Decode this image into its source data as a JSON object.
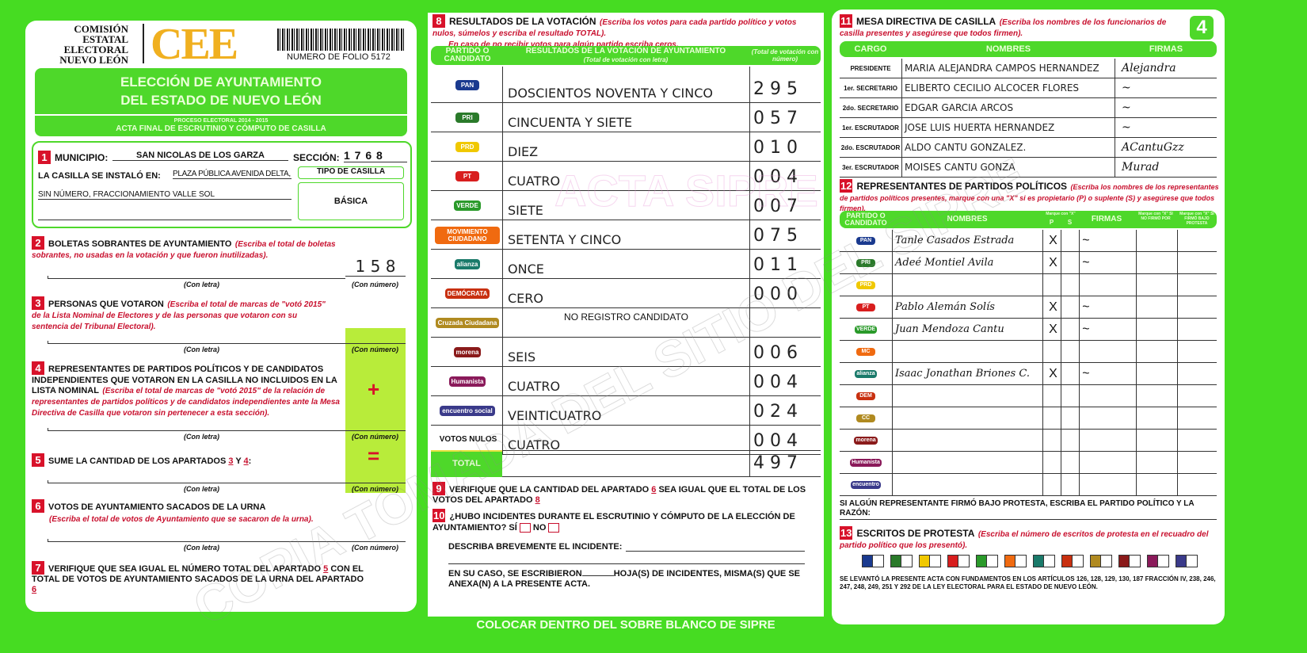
{
  "colors": {
    "background": "#46dc22",
    "accent_red": "#d8122a",
    "logo_yellow": "#f0b020"
  },
  "header": {
    "org_lines": [
      "COMISIÓN",
      "ESTATAL",
      "ELECTORAL",
      "NUEVO LEÓN"
    ],
    "logo": "CEE",
    "folio": "NUMERO DE FOLIO 5172",
    "page_number": "4"
  },
  "title": {
    "line1": "ELECCIÓN DE AYUNTAMIENTO",
    "line2": "DEL ESTADO DE NUEVO LEÓN",
    "process": "PROCESO ELECTORAL 2014 - 2015",
    "act": "ACTA FINAL DE ESCRUTINIO Y CÓMPUTO DE CASILLA"
  },
  "s1": {
    "n": "1",
    "municipio_label": "MUNICIPIO:",
    "municipio": "SAN NICOLAS DE LOS GARZA",
    "seccion_label": "SECCIÓN:",
    "seccion": "1 7 6 8",
    "lugar_label": "LA CASILLA SE INSTALÓ EN:",
    "lugar1": "PLAZA PÚBLICA AVENIDA DELTA,",
    "lugar2": "SIN NÚMERO, FRACCIONAMIENTO VALLE SOL",
    "tipo_label": "TIPO DE CASILLA",
    "tipo": "BÁSICA"
  },
  "labels": {
    "con_letra": "(Con letra)",
    "con_numero": "(Con número)",
    "plus": "+",
    "equals": "="
  },
  "s2": {
    "n": "2",
    "title": "BOLETAS SOBRANTES DE AYUNTAMIENTO",
    "note": "(Escriba el total de boletas sobrantes, no usadas en la votación y que fueron inutilizadas).",
    "value": "1 5 8"
  },
  "s3": {
    "n": "3",
    "title": "PERSONAS QUE VOTARON",
    "note": "(Escriba el total de marcas de \"votó 2015\" de la Lista Nominal de Electores y de las personas que votaron con su sentencia del Tribunal Electoral)."
  },
  "s4": {
    "n": "4",
    "title": "REPRESENTANTES DE PARTIDOS POLÍTICOS Y DE CANDIDATOS INDEPENDIENTES QUE VOTARON EN LA CASILLA NO INCLUIDOS EN LA LISTA NOMINAL",
    "note": "(Escriba el total de marcas de \"votó 2015\" de la relación de representantes de partidos políticos y de candidatos independientes ante la Mesa Directiva de Casilla que votaron sin pertenecer a esta sección)."
  },
  "s5": {
    "n": "5",
    "title": "SUME LA CANTIDAD DE LOS APARTADOS",
    "a": "3",
    "y": "Y",
    "b": "4",
    "colon": ":"
  },
  "s6": {
    "n": "6",
    "title": "VOTOS DE AYUNTAMIENTO SACADOS DE LA URNA",
    "note": "(Escriba el total de votos de Ayuntamiento que se sacaron de la urna)."
  },
  "s7": {
    "n": "7",
    "t1": "VERIFIQUE QUE SEA IGUAL EL NÚMERO TOTAL DEL APARTADO",
    "a": "5",
    "t2": "CON EL TOTAL DE VOTOS DE AYUNTAMIENTO SACADOS DE LA URNA DEL APARTADO",
    "b": "6"
  },
  "s8": {
    "n": "8",
    "title": "RESULTADOS DE LA VOTACIÓN",
    "note1": "(Escriba los votos para cada partido político y votos nulos, súmelos y escriba el resultado TOTAL).",
    "note2": "En caso de no recibir votos para algún partido escriba ceros.",
    "col_party": "PARTIDO O CANDIDATO",
    "col_text": "RESULTADOS DE LA VOTACIÓN DE AYUNTAMIENTO",
    "col_text_sub": "(Total de votación con letra)",
    "col_num": "(Total de votación con número)",
    "rows": [
      {
        "party": "PAN",
        "color": "#1a3a8f",
        "text": "DOSCIENTOS NOVENTA Y CINCO",
        "num": "2 9 5"
      },
      {
        "party": "PRI",
        "color": "#2a7a2a",
        "text": "CINCUENTA Y SIETE",
        "num": "0 5 7"
      },
      {
        "party": "PRD",
        "color": "#f0c800",
        "text": "DIEZ",
        "num": "0 1 0"
      },
      {
        "party": "PT",
        "color": "#d81e1e",
        "text": "CUATRO",
        "num": "0 0 4"
      },
      {
        "party": "VERDE",
        "color": "#2a9a2a",
        "text": "SIETE",
        "num": "0 0 7"
      },
      {
        "party": "MOVIMIENTO CIUDADANO",
        "color": "#f06a10",
        "text": "SETENTA Y CINCO",
        "num": "0 7 5"
      },
      {
        "party": "alianza",
        "color": "#1a7a6a",
        "text": "ONCE",
        "num": "0 1 1"
      },
      {
        "party": "DEMÓCRATA",
        "color": "#c83010",
        "text": "CERO",
        "num": "0 0 0"
      },
      {
        "party": "Cruzada Ciudadana",
        "color": "#b08a20",
        "text": "NO REGISTRO CANDIDATO",
        "num": ""
      },
      {
        "party": "morena",
        "color": "#8a1a1a",
        "text": "SEIS",
        "num": "0 0 6"
      },
      {
        "party": "Humanista",
        "color": "#8a1a5a",
        "text": "CUATRO",
        "num": "0 0 4"
      },
      {
        "party": "encuentro social",
        "color": "#3a3a8a",
        "text": "VEINTICUATRO",
        "num": "0 2 4"
      },
      {
        "party": "VOTOS NULOS",
        "color": "",
        "text": "CUATRO",
        "num": "0 0 4"
      }
    ],
    "total_label": "TOTAL",
    "total": "4 9 7"
  },
  "s9": {
    "n": "9",
    "t1": "VERIFIQUE QUE LA CANTIDAD DEL APARTADO",
    "a": "6",
    "t2": "SEA IGUAL QUE EL TOTAL DE LOS VOTOS DEL APARTADO",
    "b": "8"
  },
  "s10": {
    "n": "10",
    "q": "¿HUBO INCIDENTES DURANTE EL ESCRUTINIO Y CÓMPUTO DE LA ELECCIÓN DE AYUNTAMIENTO?",
    "si": "SÍ",
    "no": "NO",
    "describe": "DESCRIBA BREVEMENTE EL INCIDENTE:",
    "hojas1": "EN SU CASO, SE ESCRIBIERON",
    "hojas2": "HOJA(S) DE INCIDENTES, MISMA(S) QUE SE ANEXA(N) A LA PRESENTE ACTA."
  },
  "footer": "COLOCAR DENTRO DEL SOBRE BLANCO DE SIPRE",
  "s11": {
    "n": "11",
    "title": "MESA DIRECTIVA DE CASILLA",
    "note": "(Escriba los nombres de los funcionarios de casilla presentes y asegúrese que todos firmen).",
    "cols": [
      "CARGO",
      "NOMBRES",
      "FIRMAS"
    ],
    "rows": [
      {
        "cargo": "PRESIDENTE",
        "nombre": "MARIA ALEJANDRA CAMPOS HERNANDEZ",
        "firma": "Alejandra"
      },
      {
        "cargo": "1er. SECRETARIO",
        "nombre": "ELIBERTO CECILIO ALCOCER FLORES",
        "firma": "~"
      },
      {
        "cargo": "2do. SECRETARIO",
        "nombre": "EDGAR GARCIA ARCOS",
        "firma": "~"
      },
      {
        "cargo": "1er. ESCRUTADOR",
        "nombre": "JOSE LUIS HUERTA HERNANDEZ",
        "firma": "~"
      },
      {
        "cargo": "2do. ESCRUTADOR",
        "nombre": "ALDO CANTU GONZALEZ.",
        "firma": "ACantuGzz"
      },
      {
        "cargo": "3er. ESCRUTADOR",
        "nombre": "MOISES CANTU GONZA",
        "firma": "Murad"
      }
    ]
  },
  "s12": {
    "n": "12",
    "title": "REPRESENTANTES DE PARTIDOS POLÍTICOS",
    "note": "(Escriba los nombres de los representantes de partidos políticos presentes, marque con una \"X\" si es propietario (P) o suplente (S) y asegúrese que todos firmen).",
    "cols": [
      "PARTIDO O CANDIDATO",
      "NOMBRES",
      "Marque con \"X\"",
      "P",
      "S",
      "FIRMAS",
      "Marque con \"X\" SI NO FIRMÓ POR",
      "Marque con \"X\" SI FIRMÓ BAJO PROTESTA"
    ],
    "rows": [
      {
        "party": "PAN",
        "color": "#1a3a8f",
        "nombre": "Tanle Casados Estrada",
        "p": "X",
        "firma": "~"
      },
      {
        "party": "PRI",
        "color": "#2a7a2a",
        "nombre": "Adeé Montiel Avila",
        "p": "X",
        "firma": "~"
      },
      {
        "party": "PRD",
        "color": "#f0c800",
        "nombre": "",
        "p": "",
        "firma": ""
      },
      {
        "party": "PT",
        "color": "#d81e1e",
        "nombre": "Pablo Alemán Solís",
        "p": "X",
        "firma": "~"
      },
      {
        "party": "VERDE",
        "color": "#2a9a2a",
        "nombre": "Juan Mendoza Cantu",
        "p": "X",
        "firma": "~"
      },
      {
        "party": "MC",
        "color": "#f06a10",
        "nombre": "",
        "p": "",
        "firma": ""
      },
      {
        "party": "alianza",
        "color": "#1a7a6a",
        "nombre": "Isaac Jonathan Briones C.",
        "p": "X",
        "firma": "~"
      },
      {
        "party": "DEM",
        "color": "#c83010",
        "nombre": "",
        "p": "",
        "firma": ""
      },
      {
        "party": "CC",
        "color": "#b08a20",
        "nombre": "",
        "p": "",
        "firma": ""
      },
      {
        "party": "morena",
        "color": "#8a1a1a",
        "nombre": "",
        "p": "",
        "firma": ""
      },
      {
        "party": "Humanista",
        "color": "#8a1a5a",
        "nombre": "",
        "p": "",
        "firma": ""
      },
      {
        "party": "encuentro",
        "color": "#3a3a8a",
        "nombre": "",
        "p": "",
        "firma": ""
      }
    ],
    "protest": "SI ALGÚN REPRESENTANTE FIRMÓ BAJO PROTESTA, ESCRIBA EL PARTIDO POLÍTICO Y LA RAZÓN:"
  },
  "s13": {
    "n": "13",
    "title": "ESCRITOS DE PROTESTA",
    "note": "(Escriba el número de escritos de protesta en el recuadro del partido político que los presentó).",
    "legal": "SE LEVANTÓ LA PRESENTE ACTA CON FUNDAMENTOS EN LOS ARTÍCULOS 126, 128, 129, 130, 187 FRACCIÓN IV, 238, 246, 247, 248, 249, 251 Y 292 DE LA LEY ELECTORAL PARA EL ESTADO DE NUEVO LEÓN."
  },
  "watermarks": {
    "stamp": "ACTA SIPRE",
    "diagonal": "COPIA TOMADA DEL SITIO DEL SIPRE"
  }
}
